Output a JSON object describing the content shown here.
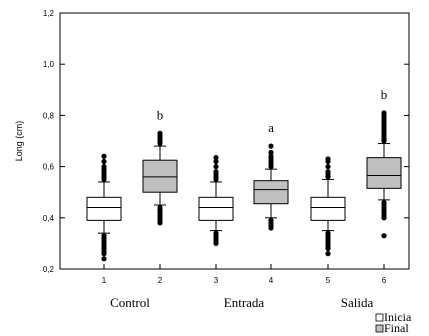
{
  "chart_data": {
    "type": "box",
    "ylabel": "Long (cm)",
    "ylim": [
      0.2,
      1.2
    ],
    "yticks": [
      0.2,
      0.4,
      0.6,
      0.8,
      1.0,
      1.2
    ],
    "ytick_labels": [
      "0,2",
      "0,4",
      "0,6",
      "0,8",
      "1,0",
      "1,2"
    ],
    "categories": [
      "1",
      "2",
      "3",
      "4",
      "5",
      "6"
    ],
    "groups": [
      "Control",
      "Entrada",
      "Salida"
    ],
    "series": [
      {
        "name": "Inicia",
        "color": "#ffffff"
      },
      {
        "name": "Final",
        "color": "#c0c0c0"
      }
    ],
    "boxes": [
      {
        "x": "1",
        "series": "Inicia",
        "q1": 0.39,
        "median": 0.44,
        "q3": 0.48,
        "whisker_low": 0.34,
        "whisker_high": 0.54,
        "outliers": [
          0.24,
          0.26,
          0.27,
          0.28,
          0.29,
          0.3,
          0.31,
          0.32,
          0.33,
          0.55,
          0.56,
          0.57,
          0.58,
          0.59,
          0.6,
          0.62,
          0.64
        ],
        "letter": ""
      },
      {
        "x": "2",
        "series": "Final",
        "q1": 0.5,
        "median": 0.56,
        "q3": 0.625,
        "whisker_low": 0.45,
        "whisker_high": 0.68,
        "outliers": [
          0.38,
          0.39,
          0.4,
          0.41,
          0.42,
          0.43,
          0.44,
          0.69,
          0.7,
          0.71,
          0.72,
          0.73
        ],
        "letter": "b"
      },
      {
        "x": "3",
        "series": "Inicia",
        "q1": 0.39,
        "median": 0.44,
        "q3": 0.48,
        "whisker_low": 0.35,
        "whisker_high": 0.54,
        "outliers": [
          0.3,
          0.31,
          0.32,
          0.33,
          0.34,
          0.55,
          0.56,
          0.57,
          0.58,
          0.6,
          0.62,
          0.635
        ],
        "letter": ""
      },
      {
        "x": "4",
        "series": "Final",
        "q1": 0.455,
        "median": 0.51,
        "q3": 0.545,
        "whisker_low": 0.4,
        "whisker_high": 0.59,
        "outliers": [
          0.36,
          0.37,
          0.38,
          0.39,
          0.6,
          0.61,
          0.62,
          0.63,
          0.64,
          0.655,
          0.68
        ],
        "letter": "a"
      },
      {
        "x": "5",
        "series": "Inicia",
        "q1": 0.39,
        "median": 0.44,
        "q3": 0.48,
        "whisker_low": 0.35,
        "whisker_high": 0.55,
        "outliers": [
          0.26,
          0.28,
          0.29,
          0.3,
          0.31,
          0.32,
          0.33,
          0.34,
          0.56,
          0.57,
          0.58,
          0.6,
          0.62,
          0.63
        ],
        "letter": ""
      },
      {
        "x": "6",
        "series": "Final",
        "q1": 0.515,
        "median": 0.565,
        "q3": 0.635,
        "whisker_low": 0.47,
        "whisker_high": 0.69,
        "outliers": [
          0.33,
          0.4,
          0.41,
          0.42,
          0.43,
          0.44,
          0.45,
          0.46,
          0.7,
          0.71,
          0.72,
          0.73,
          0.74,
          0.75,
          0.76,
          0.77,
          0.78,
          0.79,
          0.8,
          0.81
        ],
        "letter": "b"
      }
    ],
    "grid": false,
    "legend_position": "bottom-right"
  }
}
